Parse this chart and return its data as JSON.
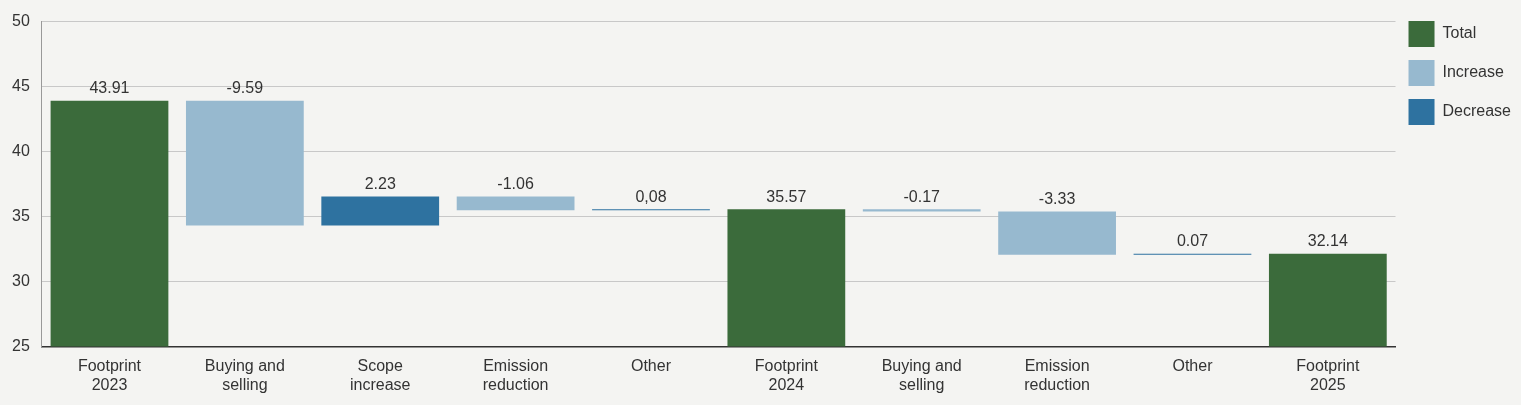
{
  "chart_data": {
    "type": "bar",
    "categories": [
      "Footprint 2023",
      "Buying and selling",
      "Scope increase",
      "Emission reduction",
      "Other",
      "Footprint 2024",
      "Buying and selling",
      "Emission reduction",
      "Other",
      "Footprint 2025"
    ],
    "series": [
      {
        "name": "Total",
        "color": "#3b6b3b",
        "values": [
          43.91,
          null,
          null,
          null,
          null,
          35.57,
          null,
          null,
          null,
          32.14
        ],
        "value_labels": [
          "43.91",
          null,
          null,
          null,
          null,
          "35.57",
          null,
          null,
          null,
          "32.14"
        ]
      },
      {
        "name": "Increase",
        "color": "#97b9cf",
        "values": [
          null,
          -9.59,
          null,
          -1.06,
          null,
          null,
          -0.17,
          -3.33,
          null,
          null
        ],
        "base": [
          null,
          43.91,
          null,
          36.55,
          null,
          null,
          35.57,
          35.4,
          null,
          null
        ],
        "value_labels": [
          null,
          "-9.59",
          null,
          "-1.06",
          null,
          null,
          "-0.17",
          "-3.33",
          null,
          null
        ]
      },
      {
        "name": "Decrease",
        "color": "#2e72a0",
        "values": [
          null,
          null,
          2.23,
          null,
          0.08,
          null,
          null,
          null,
          0.07,
          null
        ],
        "base": [
          null,
          null,
          34.32,
          null,
          35.49,
          null,
          null,
          null,
          32.07,
          null
        ],
        "value_labels": [
          null,
          null,
          "2.23",
          null,
          "0,08",
          null,
          null,
          null,
          "0.07",
          null
        ]
      }
    ],
    "ylim": [
      25,
      50
    ],
    "yticks": [
      25,
      30,
      35,
      40,
      45,
      50
    ],
    "grid": "y",
    "legend": "right"
  }
}
